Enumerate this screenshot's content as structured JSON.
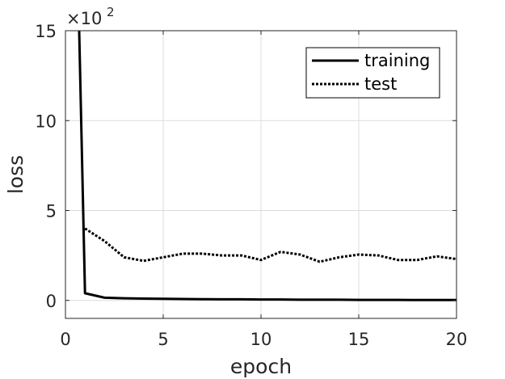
{
  "chart_data": {
    "type": "line",
    "xlabel": "epoch",
    "ylabel": "loss",
    "y_multiplier": {
      "base": "×10",
      "exponent": "2"
    },
    "xlim": [
      0,
      20
    ],
    "ylim": [
      -1,
      15
    ],
    "xticks": [
      0,
      5,
      10,
      15,
      20
    ],
    "yticks": [
      0,
      5,
      10,
      15
    ],
    "grid": true,
    "legend_position": "top-right",
    "series": [
      {
        "name": "training",
        "style": "solid",
        "color": "#000000",
        "x": [
          0.7,
          1,
          2,
          3,
          4,
          5,
          6,
          7,
          8,
          9,
          10,
          11,
          12,
          13,
          14,
          15,
          16,
          17,
          18,
          19,
          20
        ],
        "values": [
          15.2,
          0.4,
          0.15,
          0.12,
          0.1,
          0.09,
          0.08,
          0.07,
          0.06,
          0.06,
          0.05,
          0.05,
          0.04,
          0.04,
          0.04,
          0.03,
          0.03,
          0.03,
          0.02,
          0.02,
          0.02
        ]
      },
      {
        "name": "test",
        "style": "dotted",
        "color": "#000000",
        "x": [
          1,
          2,
          3,
          4,
          5,
          6,
          7,
          8,
          9,
          10,
          11,
          12,
          13,
          14,
          15,
          16,
          17,
          18,
          19,
          20
        ],
        "values": [
          4.0,
          3.3,
          2.4,
          2.2,
          2.4,
          2.6,
          2.6,
          2.5,
          2.5,
          2.25,
          2.7,
          2.55,
          2.15,
          2.4,
          2.55,
          2.5,
          2.25,
          2.25,
          2.45,
          2.3
        ]
      }
    ]
  },
  "colors": {
    "axis": "#262626",
    "grid": "#dcdcdc",
    "line": "#000000",
    "background": "#ffffff"
  }
}
